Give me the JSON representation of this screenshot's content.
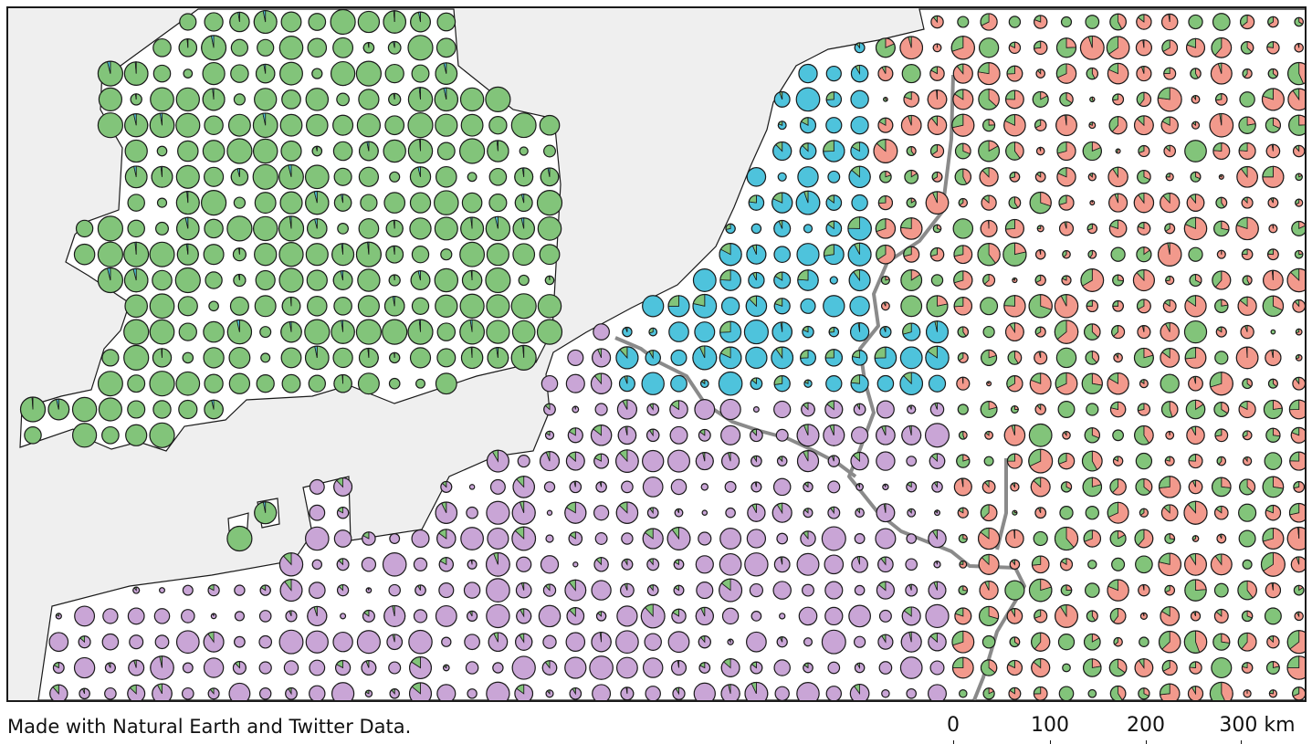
{
  "footer": {
    "credit": "Made with Natural Earth and Twitter Data."
  },
  "scale_bar": {
    "ticks": [
      "0",
      "100",
      "200",
      "300 km"
    ]
  },
  "colors": {
    "sea": "#efefef",
    "land": "#ffffff",
    "coastline": "#1a1a1a",
    "border": "#8a8a8a",
    "pie_outline": "#1a1a1a",
    "green": "#82c47a",
    "blue": "#4ec3dc",
    "purple": "#c9a5d6",
    "salmon": "#f2998c"
  },
  "map": {
    "symbol": "pie-chart grid"
  }
}
